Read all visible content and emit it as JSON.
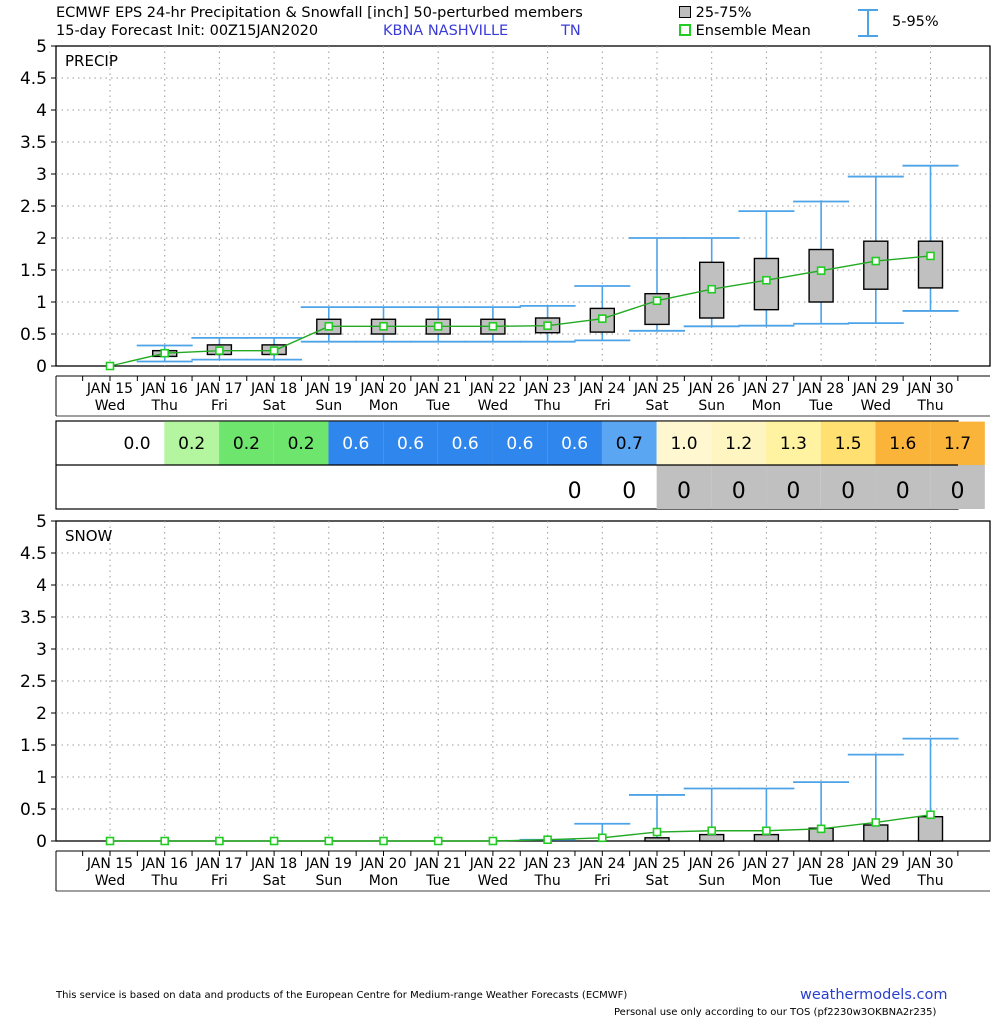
{
  "header": {
    "title": "ECMWF EPS 24-hr Precipitation & Snowfall [inch]  50-perturbed members",
    "subtitle": "15-day Forecast Init: 00Z15JAN2020",
    "station": "KBNA  NASHVILLE",
    "state": "TN"
  },
  "legend": {
    "box": "25-75%",
    "mean": "Ensemble Mean",
    "whisker": "5-95%"
  },
  "colors": {
    "whisker": "#4da3e8",
    "mean_line": "#22aa22",
    "mean_marker": "#22cc22",
    "box_fill": "#c0c0c0",
    "snow_row_fill": "#c0c0c0"
  },
  "chart_data": [
    {
      "type": "box",
      "title": "PRECIP",
      "categories": [
        "JAN 15",
        "JAN 16",
        "JAN 17",
        "JAN 18",
        "JAN 19",
        "JAN 20",
        "JAN 21",
        "JAN 22",
        "JAN 23",
        "JAN 24",
        "JAN 25",
        "JAN 26",
        "JAN 27",
        "JAN 28",
        "JAN 29",
        "JAN 30"
      ],
      "weekdays": [
        "Wed",
        "Thu",
        "Fri",
        "Sat",
        "Sun",
        "Mon",
        "Tue",
        "Wed",
        "Thu",
        "Fri",
        "Sat",
        "Sun",
        "Mon",
        "Tue",
        "Wed",
        "Thu"
      ],
      "ylim": [
        0,
        5
      ],
      "yticks": [
        "0",
        "0.5",
        "1",
        "1.5",
        "2",
        "2.5",
        "3",
        "3.5",
        "4",
        "4.5",
        "5"
      ],
      "p05": [
        0,
        0.07,
        0.1,
        0.1,
        0.38,
        0.38,
        0.38,
        0.38,
        0.38,
        0.4,
        0.55,
        0.62,
        0.63,
        0.66,
        0.67,
        0.86
      ],
      "p25": [
        0,
        0.15,
        0.18,
        0.18,
        0.5,
        0.5,
        0.5,
        0.5,
        0.52,
        0.53,
        0.65,
        0.75,
        0.88,
        1.0,
        1.2,
        1.22
      ],
      "p75": [
        0,
        0.24,
        0.33,
        0.33,
        0.73,
        0.73,
        0.73,
        0.73,
        0.75,
        0.9,
        1.13,
        1.62,
        1.68,
        1.82,
        1.95,
        1.95
      ],
      "p95": [
        0,
        0.32,
        0.44,
        0.44,
        0.92,
        0.92,
        0.92,
        0.92,
        0.94,
        1.25,
        2.0,
        2.0,
        2.42,
        2.57,
        2.96,
        3.13
      ],
      "mean": [
        0.0,
        0.2,
        0.24,
        0.24,
        0.62,
        0.62,
        0.62,
        0.62,
        0.63,
        0.74,
        1.02,
        1.2,
        1.34,
        1.49,
        1.64,
        1.72
      ],
      "grid": true
    },
    {
      "type": "box",
      "title": "SNOW",
      "categories": [
        "JAN 15",
        "JAN 16",
        "JAN 17",
        "JAN 18",
        "JAN 19",
        "JAN 20",
        "JAN 21",
        "JAN 22",
        "JAN 23",
        "JAN 24",
        "JAN 25",
        "JAN 26",
        "JAN 27",
        "JAN 28",
        "JAN 29",
        "JAN 30"
      ],
      "weekdays": [
        "Wed",
        "Thu",
        "Fri",
        "Sat",
        "Sun",
        "Mon",
        "Tue",
        "Wed",
        "Thu",
        "Fri",
        "Sat",
        "Sun",
        "Mon",
        "Tue",
        "Wed",
        "Thu"
      ],
      "ylim": [
        0,
        5
      ],
      "yticks": [
        "0",
        "0.5",
        "1",
        "1.5",
        "2",
        "2.5",
        "3",
        "3.5",
        "4",
        "4.5",
        "5"
      ],
      "p05": [
        0,
        0,
        0,
        0,
        0,
        0,
        0,
        0,
        0,
        0,
        0,
        0,
        0,
        0,
        0,
        0
      ],
      "p25": [
        0,
        0,
        0,
        0,
        0,
        0,
        0,
        0,
        0,
        0,
        0,
        0,
        0,
        0,
        0,
        0
      ],
      "p75": [
        0,
        0,
        0,
        0,
        0,
        0,
        0,
        0,
        0,
        0,
        0.05,
        0.1,
        0.1,
        0.2,
        0.25,
        0.38
      ],
      "p95": [
        0,
        0,
        0,
        0,
        0,
        0,
        0,
        0,
        0.02,
        0.27,
        0.72,
        0.82,
        0.82,
        0.92,
        1.35,
        1.6
      ],
      "mean": [
        0,
        0,
        0,
        0,
        0,
        0,
        0,
        0,
        0.02,
        0.05,
        0.14,
        0.16,
        0.16,
        0.19,
        0.29,
        0.41
      ],
      "grid": true
    }
  ],
  "table": {
    "precip_row": [
      "0.0",
      "0.2",
      "0.2",
      "0.2",
      "0.6",
      "0.6",
      "0.6",
      "0.6",
      "0.6",
      "0.7",
      "1.0",
      "1.2",
      "1.3",
      "1.5",
      "1.6",
      "1.7"
    ],
    "precip_colors": [
      "#ffffff",
      "#b4f5a0",
      "#6ee66e",
      "#6ee66e",
      "#2f86ec",
      "#2f86ec",
      "#2f86ec",
      "#2f86ec",
      "#2f86ec",
      "#5aa6f2",
      "#fff7d0",
      "#fff5c0",
      "#fff2a0",
      "#ffe070",
      "#fbb43a",
      "#fbb43a"
    ],
    "precip_text_colors": [
      "#000",
      "#000",
      "#000",
      "#000",
      "#ffffff",
      "#ffffff",
      "#ffffff",
      "#ffffff",
      "#ffffff",
      "#000",
      "#000",
      "#000",
      "#000",
      "#000",
      "#000",
      "#000"
    ],
    "snow_row": [
      "",
      "",
      "",
      "",
      "",
      "",
      "",
      "",
      "0",
      "0",
      "0",
      "0",
      "0",
      "0",
      "0",
      "0"
    ]
  },
  "footer": {
    "disclaimer": "This service is based on data and products of the European Centre for Medium-range Weather Forecasts (ECMWF)",
    "site": "weathermodels.com",
    "tos": "Personal use only according to our TOS (pf2230w3OKBNA2r235)"
  }
}
